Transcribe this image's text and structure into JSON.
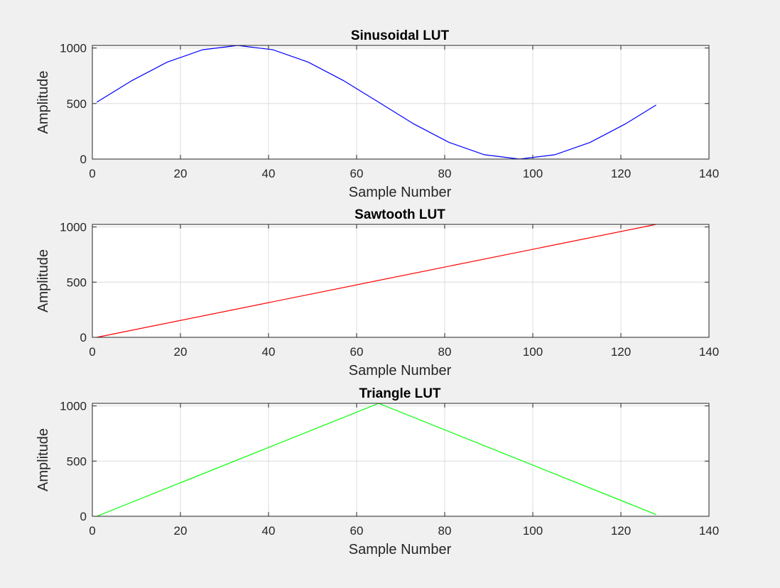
{
  "chart_data": [
    {
      "type": "line",
      "title": "Sinusoidal LUT",
      "xlabel": "Sample Number",
      "ylabel": "Amplitude",
      "xlim": [
        0,
        140
      ],
      "ylim": [
        0,
        1023
      ],
      "xticks": [
        0,
        20,
        40,
        60,
        80,
        100,
        120,
        140
      ],
      "yticks": [
        0,
        500,
        1000
      ],
      "grid": true,
      "series": [
        {
          "color": "#0000ff",
          "x": [
            1,
            9,
            17,
            25,
            33,
            41,
            49,
            57,
            65,
            73,
            81,
            89,
            97,
            105,
            113,
            121,
            128
          ],
          "values": [
            512,
            707,
            873,
            984,
            1023,
            984,
            873,
            707,
            512,
            316,
            150,
            39,
            0,
            39,
            150,
            316,
            487
          ]
        }
      ]
    },
    {
      "type": "line",
      "title": "Sawtooth LUT",
      "xlabel": "Sample Number",
      "ylabel": "Amplitude",
      "xlim": [
        0,
        140
      ],
      "ylim": [
        0,
        1023
      ],
      "xticks": [
        0,
        20,
        40,
        60,
        80,
        100,
        120,
        140
      ],
      "yticks": [
        0,
        500,
        1000
      ],
      "grid": true,
      "series": [
        {
          "color": "#ff0000",
          "x": [
            1,
            128
          ],
          "values": [
            0,
            1023
          ]
        }
      ]
    },
    {
      "type": "line",
      "title": "Triangle LUT",
      "xlabel": "Sample Number",
      "ylabel": "Amplitude",
      "xlim": [
        0,
        140
      ],
      "ylim": [
        0,
        1023
      ],
      "xticks": [
        0,
        20,
        40,
        60,
        80,
        100,
        120,
        140
      ],
      "yticks": [
        0,
        500,
        1000
      ],
      "grid": true,
      "series": [
        {
          "color": "#00ff00",
          "x": [
            1,
            65,
            128
          ],
          "values": [
            0,
            1023,
            16
          ]
        }
      ]
    }
  ]
}
